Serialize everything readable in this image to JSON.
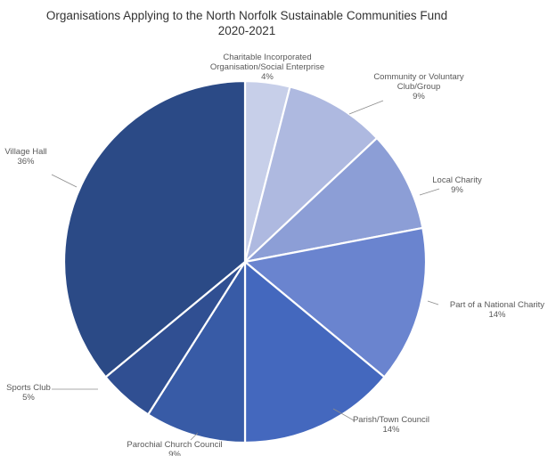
{
  "chart_data": {
    "type": "pie",
    "title": "Organisations Applying to the North Norfolk Sustainable Communities Fund",
    "subtitle": "2020-2021",
    "slices": [
      {
        "label_lines": [
          "Charitable Incorporated",
          "Organisation/Social Enterprise"
        ],
        "value": 4,
        "value_label": "4%",
        "color": "#c7cfe9"
      },
      {
        "label_lines": [
          "Community or Voluntary",
          "Club/Group"
        ],
        "value": 9,
        "value_label": "9%",
        "color": "#aeb9e0"
      },
      {
        "label_lines": [
          "Local Charity"
        ],
        "value": 9,
        "value_label": "9%",
        "color": "#8c9ed6"
      },
      {
        "label_lines": [
          "Part of a National Charity"
        ],
        "value": 14,
        "value_label": "14%",
        "color": "#6a84cf"
      },
      {
        "label_lines": [
          "Parish/Town Council"
        ],
        "value": 14,
        "value_label": "14%",
        "color": "#4468be"
      },
      {
        "label_lines": [
          "Parochial Church Council"
        ],
        "value": 9,
        "value_label": "9%",
        "color": "#385ba6"
      },
      {
        "label_lines": [
          "Sports Club"
        ],
        "value": 5,
        "value_label": "5%",
        "color": "#304f92"
      },
      {
        "label_lines": [
          "Village Hall"
        ],
        "value": 36,
        "value_label": "36%",
        "color": "#2b4a86"
      }
    ]
  }
}
